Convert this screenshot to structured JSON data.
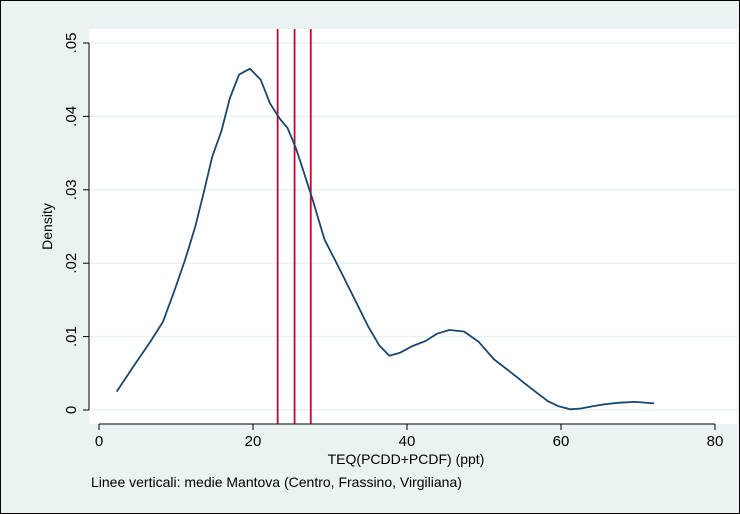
{
  "chart_data": {
    "type": "line",
    "title": "",
    "xlabel": "TEQ(PCDD+PCDF) (ppt)",
    "ylabel": "Density",
    "note": "Linee verticali: medie Mantova (Centro, Frassino, Virgiliana)",
    "xlim": [
      0,
      80
    ],
    "ylim": [
      0,
      0.05
    ],
    "x_ticks": [
      0,
      20,
      40,
      60,
      80
    ],
    "x_tick_labels": [
      "0",
      "20",
      "40",
      "60",
      "80"
    ],
    "y_ticks": [
      0,
      0.01,
      0.02,
      0.03,
      0.04,
      0.05
    ],
    "y_tick_labels": [
      "0",
      ".01",
      ".02",
      ".03",
      ".04",
      ".05"
    ],
    "grid": "horizontal",
    "legend": "none",
    "series": [
      {
        "x": [
          2.3,
          4.5,
          6.6,
          8.3,
          9.8,
          11.2,
          12.5,
          13.6,
          14.7,
          15.9,
          17.0,
          18.2,
          19.6,
          21.0,
          22.2,
          23.4,
          24.5,
          25.6,
          26.6,
          27.7,
          29.3,
          31.1,
          33.1,
          35.0,
          36.4,
          37.7,
          39.1,
          40.7,
          42.4,
          43.9,
          45.5,
          47.4,
          49.3,
          51.3,
          53.4,
          55.2,
          56.8,
          58.3,
          59.7,
          61.2,
          62.6,
          64.1,
          65.8,
          67.6,
          69.6,
          72.1
        ],
        "y": [
          0.0025,
          0.006,
          0.0092,
          0.012,
          0.0163,
          0.0205,
          0.025,
          0.0296,
          0.0345,
          0.038,
          0.0425,
          0.0457,
          0.0465,
          0.045,
          0.0418,
          0.0398,
          0.0384,
          0.0356,
          0.0324,
          0.0288,
          0.0232,
          0.0195,
          0.0153,
          0.0113,
          0.0088,
          0.0074,
          0.0078,
          0.0087,
          0.0094,
          0.0104,
          0.0109,
          0.0107,
          0.0093,
          0.0069,
          0.0052,
          0.0037,
          0.0024,
          0.0012,
          0.0005,
          0.0001,
          0.0002,
          0.0005,
          0.0008,
          0.001,
          0.0011,
          0.0009
        ],
        "color": "#1a476f"
      }
    ],
    "vertical_lines": [
      23.2,
      25.4,
      27.5
    ],
    "vertical_line_color": "#c10534",
    "background_color": "#eaf2f3",
    "plot_background_color": "#ffffff",
    "grid_color": "#eaf2f3"
  }
}
